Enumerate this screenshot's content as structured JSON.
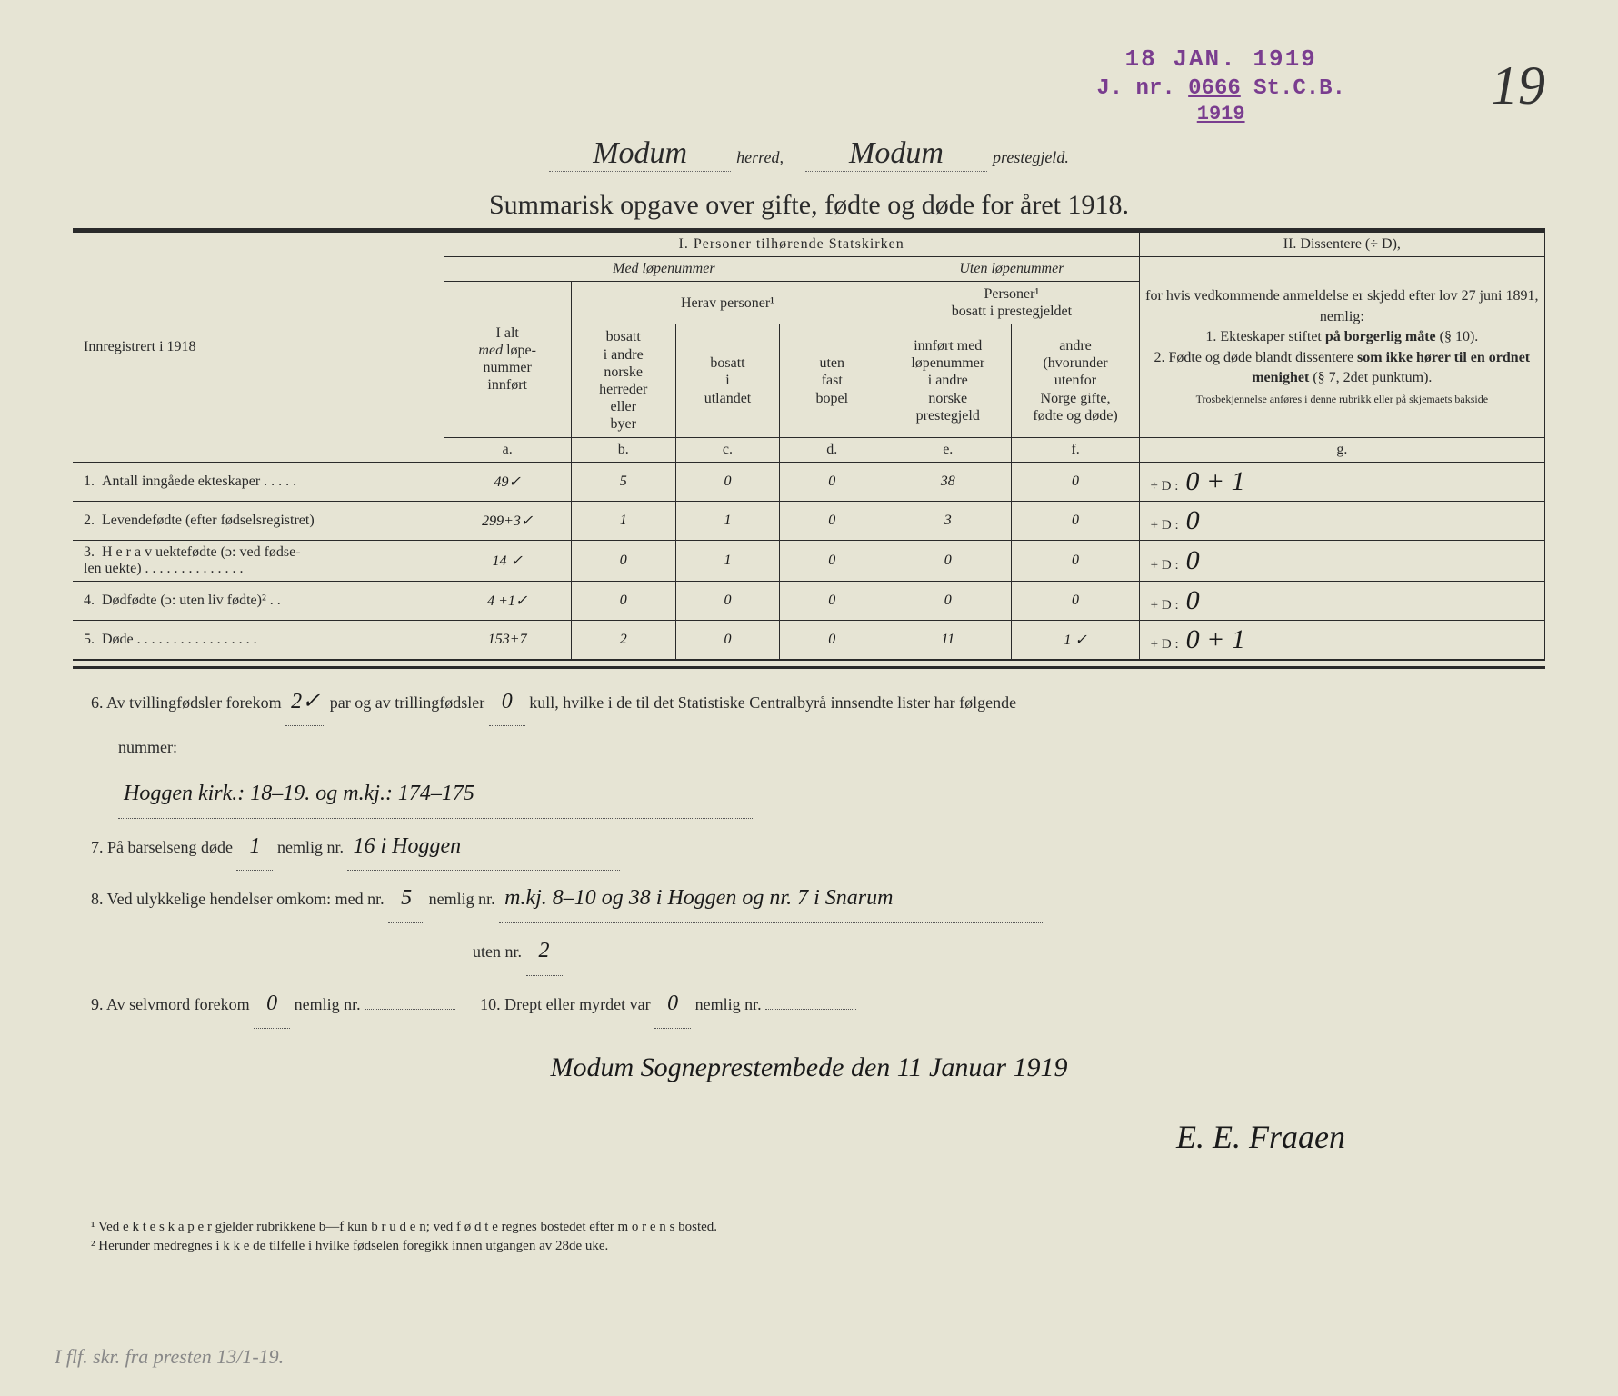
{
  "stamps": {
    "date": "18 JAN. 1919",
    "jnr_prefix": "J. nr.",
    "jnr_num": "0666",
    "jnr_suffix": "St.C.B.",
    "year": "1919"
  },
  "page_number": "19",
  "header": {
    "herred_value": "Modum",
    "herred_label": "herred,",
    "prestegjeld_value": "Modum",
    "prestegjeld_label": "prestegjeld."
  },
  "title": "Summarisk opgave over gifte, fødte og døde for året 1918.",
  "table": {
    "section_i": "I.  Personer tilhørende Statskirken",
    "med": "Med løpenummer",
    "uten": "Uten løpenummer",
    "innreg": "Innregistrert i 1918",
    "col_a": "I alt\nmed løpe-\nnummer\ninnført",
    "herav": "Herav personer¹",
    "col_b": "bosatt\ni andre\nnorske\nherreder\neller\nbyer",
    "col_c": "bosatt\ni\nutlandet",
    "col_d": "uten\nfast\nbopel",
    "pers_bos": "Personer¹\nbosatt i prestegjeldet",
    "col_e": "innført med\nløpenummer\ni andre\nnorske\nprestegjeld",
    "col_f": "andre\n(hvorunder\nutenfor\nNorge gifte,\nfødte og døde)",
    "letters": {
      "a": "a.",
      "b": "b.",
      "c": "c.",
      "d": "d.",
      "e": "e.",
      "f": "f.",
      "g": "g."
    },
    "section_ii": "II.  Dissentere (÷ D),",
    "diss_text": "for hvis vedkommende anmeldelse er skjedd efter lov 27 juni 1891, nemlig:\n1. Ekteskaper stiftet på borgerlig måte (§ 10).\n2. Fødte og døde blandt dissentere som ikke hører til en ordnet menighet (§ 7, 2det punktum).\nTrosbekjennelse anføres i denne rubrikk eller på skjemaets bakside",
    "rows": [
      {
        "num": "1.",
        "label": "Antall inngåede ekteskaper . . . . .",
        "a": "49✓",
        "b": "5",
        "c": "0",
        "d": "0",
        "e": "38",
        "f": "0",
        "g_prefix": "÷ D :",
        "g": "0 + 1"
      },
      {
        "num": "2.",
        "label": "Levendefødte (efter fødselsregistret)",
        "a": "299+3✓",
        "b": "1",
        "c": "1",
        "d": "0",
        "e": "3",
        "f": "0",
        "g_prefix": "+ D :",
        "g": "0"
      },
      {
        "num": "3.",
        "label": "H e r a v uektefødte (ɔ: ved fødse-\nlen uekte) . . . . . . . . . . . . . .",
        "a": "14 ✓",
        "b": "0",
        "c": "1",
        "d": "0",
        "e": "0",
        "f": "0",
        "g_prefix": "+ D :",
        "g": "0"
      },
      {
        "num": "4.",
        "label": "Dødfødte (ɔ: uten liv fødte)² . .",
        "a": "4 +1✓",
        "b": "0",
        "c": "0",
        "d": "0",
        "e": "0",
        "f": "0",
        "g_prefix": "+ D :",
        "g": "0"
      },
      {
        "num": "5.",
        "label": "Døde . . . . . . . . . . . . . . . . .",
        "a": "153+7",
        "b": "2",
        "c": "0",
        "d": "0",
        "e": "11",
        "f": "1 ✓",
        "g_prefix": "+ D :",
        "g": "0 + 1"
      }
    ]
  },
  "body": {
    "l6_a": "6.  Av tvillingfødsler forekom",
    "l6_tvilling": "2✓",
    "l6_b": "par og av trillingfødsler",
    "l6_trilling": "0",
    "l6_c": "kull, hvilke i de til det Statistiske Centralbyrå innsendte lister har følgende",
    "l6_d": "nummer:",
    "l6_nums": "Hoggen kirk.: 18–19. og m.kj.: 174–175",
    "l7_a": "7.  På barselseng døde",
    "l7_v1": "1",
    "l7_b": "nemlig nr.",
    "l7_v2": "16 i Hoggen",
    "l8_a": "8.  Ved ulykkelige hendelser omkom:  med nr.",
    "l8_v1": "5",
    "l8_b": "nemlig nr.",
    "l8_v2": "m.kj. 8–10 og 38 i Hoggen og nr. 7 i Snarum",
    "l8_c": "uten nr.",
    "l8_v3": "2",
    "l9_a": "9.  Av selvmord forekom",
    "l9_v1": "0",
    "l9_b": "nemlig nr.",
    "l10_a": "10.  Drept eller myrdet var",
    "l10_v1": "0",
    "l10_b": "nemlig nr.",
    "place_date": "Modum Sogneprestembede den 11 Januar 1919",
    "signature": "E. E. Fraaen"
  },
  "footnotes": {
    "f1": "¹  Ved e k t e s k a p e r gjelder rubrikkene b—f kun b r u d e n; ved f ø d t e regnes bostedet efter m o r e n s bosted.",
    "f2": "²  Herunder medregnes i k k e de tilfelle i hvilke fødselen foregikk innen utgangen av 28de uke."
  },
  "pencil_note": "I flf. skr. fra presten 13/1-19."
}
